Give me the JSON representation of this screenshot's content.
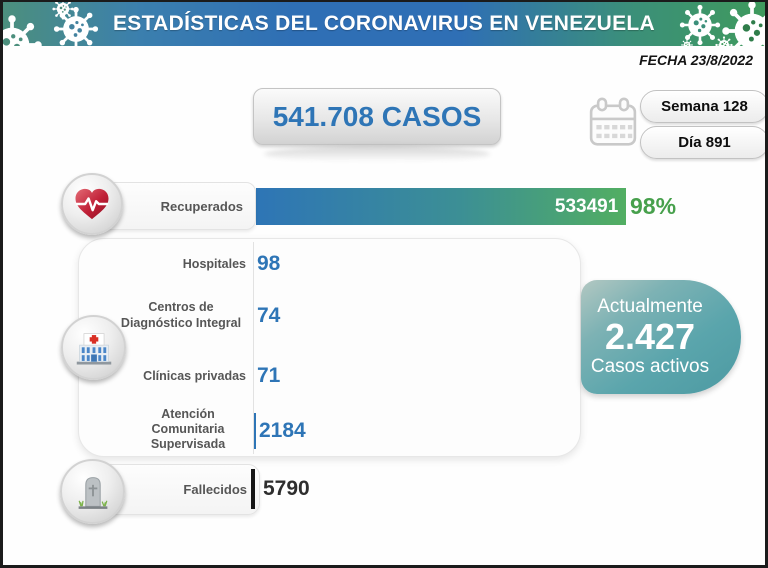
{
  "header": {
    "title": "ESTADÍSTICAS DEL CORONAVIRUS EN VENEZUELA"
  },
  "date_label": "FECHA 23/8/2022",
  "total_box": {
    "label": "541.708 CASOS"
  },
  "week_pill": "Semana 128",
  "day_pill": "Día 891",
  "rows": {
    "recuperados": {
      "label": "Recuperados",
      "value": "533491",
      "pct": "98%"
    },
    "hospitales": {
      "label": "Hospitales",
      "value": "98"
    },
    "cdi": {
      "label": "Centros de Diagnóstico Integral",
      "value": "74"
    },
    "clinicas": {
      "label": "Clínicas privadas",
      "value": "71"
    },
    "atencion": {
      "label": "Atención Comunitaria Supervisada",
      "value": "2184"
    },
    "fallecidos": {
      "label": "Fallecidos",
      "value": "5790"
    }
  },
  "active_box": {
    "line1": "Actualmente",
    "value": "2.427",
    "line2": "Casos activos"
  },
  "icons": {
    "header_left": "virus-icon",
    "header_right": "virus-icon",
    "calendar": "calendar-icon",
    "recuperados": "heart-ekg-icon",
    "hospitalizacion": "hospital-icon",
    "fallecidos": "tombstone-icon"
  },
  "colors": {
    "accent_blue": "#2e75b6",
    "bar_green_end": "#52ae62",
    "pct_green": "#47a04c",
    "active_teal": "#55a3ab",
    "header_teal": "#4c8f7d",
    "header_blue": "#2f6fb5",
    "header_green": "#3f9a5d"
  },
  "chart_data": {
    "type": "bar",
    "title": "ESTADÍSTICAS DEL CORONAVIRUS EN VENEZUELA",
    "date": "23/8/2022",
    "week": 128,
    "day": 891,
    "total_cases": 541708,
    "active_cases": 2427,
    "recovered_pct": 98,
    "categories": [
      "Recuperados",
      "Hospitales",
      "Centros de Diagnóstico Integral",
      "Clínicas privadas",
      "Atención Comunitaria Supervisada",
      "Fallecidos"
    ],
    "values": [
      533491,
      98,
      74,
      71,
      2184,
      5790
    ],
    "orientation": "horizontal",
    "grid": false,
    "legend": false,
    "xlim": [
      0,
      541708
    ]
  }
}
